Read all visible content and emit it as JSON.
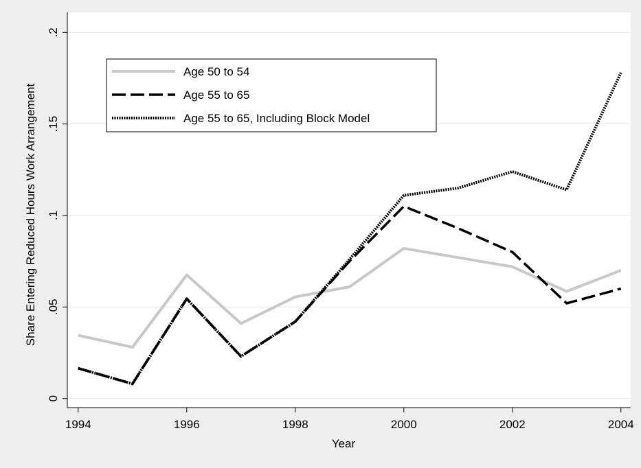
{
  "chart_data": {
    "type": "line",
    "x_label": "Year",
    "y_label": "Share Entering Reduced Hours Work Arrangement",
    "x": [
      1994,
      1995,
      1996,
      1997,
      1998,
      1999,
      2000,
      2001,
      2002,
      2003,
      2004
    ],
    "series": [
      {
        "name": "Age 50 to 54",
        "color": "#c8c8c8",
        "linestyle": "solid",
        "values": [
          0.0345,
          0.028,
          0.0675,
          0.041,
          0.0555,
          0.061,
          0.082,
          0.077,
          0.072,
          0.0585,
          0.07
        ]
      },
      {
        "name": "Age 55 to 65",
        "color": "#000000",
        "linestyle": "dashed",
        "values": [
          0.0165,
          0.008,
          0.0545,
          0.023,
          0.042,
          0.075,
          0.105,
          0.093,
          0.08,
          0.052,
          0.06
        ]
      },
      {
        "name": "Age 55 to 65, Including Block Model",
        "color": "#000000",
        "linestyle": "dotted",
        "values": [
          0.0165,
          0.008,
          0.0545,
          0.023,
          0.042,
          0.076,
          0.111,
          0.115,
          0.124,
          0.114,
          0.178
        ]
      }
    ],
    "xlim": [
      1993.8,
      2004.18
    ],
    "ylim": [
      -0.005,
      0.211
    ],
    "xticks": [
      1994,
      1996,
      1998,
      2000,
      2002,
      2004
    ],
    "yticks": [
      0,
      {
        "value": 0.05,
        "label": ".05"
      },
      {
        "value": 0.1,
        "label": ".1"
      },
      {
        "value": 0.15,
        "label": ".15"
      },
      {
        "value": 0.2,
        "label": ".2"
      }
    ],
    "grid": true,
    "legend_position": "top-left"
  }
}
